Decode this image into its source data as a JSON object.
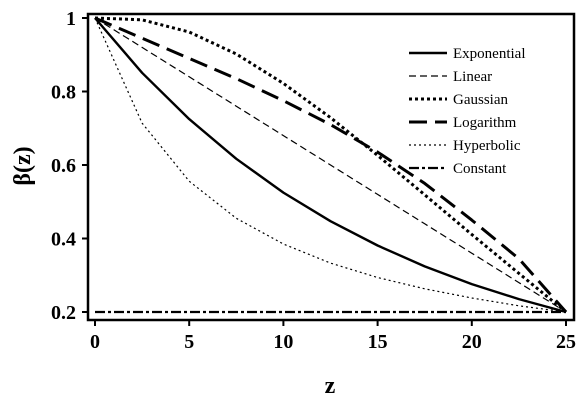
{
  "chart_data": {
    "type": "line",
    "xlabel": "z",
    "ylabel": "β(z)",
    "xlim": [
      0,
      25
    ],
    "ylim": [
      0.2,
      1.0
    ],
    "x_ticks": [
      0,
      5,
      10,
      15,
      20,
      25
    ],
    "y_ticks": [
      0.2,
      0.4,
      0.6,
      0.8,
      1.0
    ],
    "x_tick_labels": [
      "0",
      "5",
      "10",
      "15",
      "20",
      "25"
    ],
    "y_tick_labels": [
      "0.2",
      "0.4",
      "0.6",
      "0.8",
      "1"
    ],
    "grid": false,
    "legend_position": "top-right",
    "x": [
      0,
      2.5,
      5,
      7.5,
      10,
      12.5,
      15,
      17.5,
      20,
      22.5,
      25
    ],
    "series": [
      {
        "name": "Exponential",
        "style": "solid",
        "values": [
          1.0,
          0.851,
          0.725,
          0.617,
          0.525,
          0.447,
          0.381,
          0.324,
          0.276,
          0.235,
          0.2
        ]
      },
      {
        "name": "Linear",
        "style": "dashed",
        "values": [
          1.0,
          0.92,
          0.84,
          0.76,
          0.68,
          0.6,
          0.52,
          0.44,
          0.36,
          0.28,
          0.2
        ]
      },
      {
        "name": "Gaussian",
        "style": "dotted-bold",
        "values": [
          1.0,
          0.995,
          0.962,
          0.902,
          0.822,
          0.729,
          0.626,
          0.519,
          0.411,
          0.305,
          0.2
        ]
      },
      {
        "name": "Logarithm",
        "style": "long-dash",
        "values": [
          1.0,
          0.945,
          0.89,
          0.835,
          0.775,
          0.71,
          0.635,
          0.55,
          0.45,
          0.345,
          0.2
        ]
      },
      {
        "name": "Hyperbolic",
        "style": "dotted",
        "values": [
          1.0,
          0.714,
          0.556,
          0.455,
          0.385,
          0.333,
          0.294,
          0.263,
          0.238,
          0.217,
          0.2
        ]
      },
      {
        "name": "Constant",
        "style": "dash-dot",
        "values": [
          0.2,
          0.2,
          0.2,
          0.2,
          0.2,
          0.2,
          0.2,
          0.2,
          0.2,
          0.2,
          0.2
        ]
      }
    ]
  }
}
